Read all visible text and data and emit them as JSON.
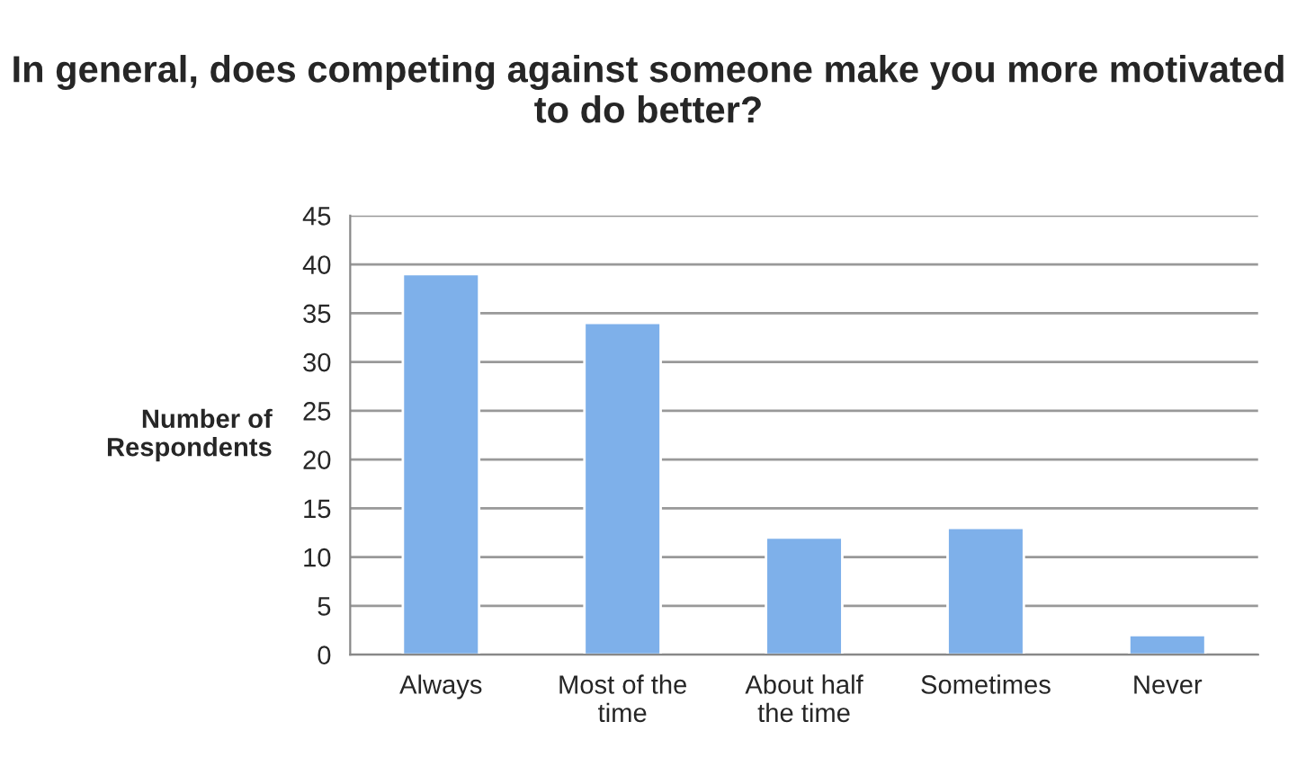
{
  "chart_data": {
    "type": "bar",
    "title": "In general, does competing against someone make you more motivated to do better?",
    "ylabel": "Number of\nRespondents",
    "categories": [
      "Always",
      "Most of the\ntime",
      "About half\nthe time",
      "Sometimes",
      "Never"
    ],
    "values": [
      39,
      34,
      12,
      13,
      2
    ],
    "color": "#7eb0ea",
    "ylim": [
      0,
      45
    ],
    "yticks": [
      0,
      5,
      10,
      15,
      20,
      25,
      30,
      35,
      40,
      45
    ],
    "grid": "y"
  }
}
